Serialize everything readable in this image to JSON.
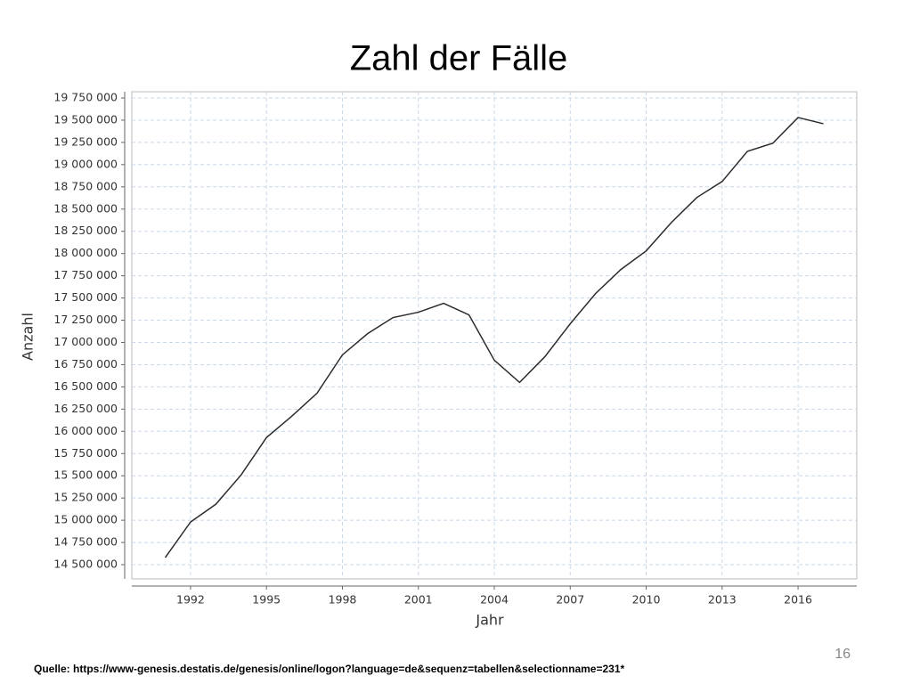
{
  "chart_data": {
    "type": "line",
    "title": "Zahl der Fälle",
    "xlabel": "Jahr",
    "ylabel": "Anzahl",
    "x": [
      1991,
      1992,
      1993,
      1994,
      1995,
      1996,
      1997,
      1998,
      1999,
      2000,
      2001,
      2002,
      2003,
      2004,
      2005,
      2006,
      2007,
      2008,
      2009,
      2010,
      2011,
      2012,
      2013,
      2014,
      2015,
      2016,
      2017
    ],
    "series": [
      {
        "name": "Anzahl",
        "color": "#2b2b2b",
        "values": [
          14580000,
          14980000,
          15180000,
          15510000,
          15930000,
          16170000,
          16430000,
          16860000,
          17100000,
          17280000,
          17340000,
          17440000,
          17310000,
          16800000,
          16550000,
          16840000,
          17210000,
          17550000,
          17820000,
          18030000,
          18350000,
          18630000,
          18810000,
          19150000,
          19240000,
          19530000,
          19460000
        ]
      }
    ],
    "xlim": [
      1989.68,
      2018.32
    ],
    "ylim": [
      14340000,
      19820000
    ],
    "xticks": [
      1992,
      1995,
      1998,
      2001,
      2004,
      2007,
      2010,
      2013,
      2016
    ],
    "yticks": [
      {
        "value": 14500000,
        "label": "14 500 000"
      },
      {
        "value": 14750000,
        "label": "14 750 000"
      },
      {
        "value": 15000000,
        "label": "15 000 000"
      },
      {
        "value": 15250000,
        "label": "15 250 000"
      },
      {
        "value": 15500000,
        "label": "15 500 000"
      },
      {
        "value": 15750000,
        "label": "15 750 000"
      },
      {
        "value": 16000000,
        "label": "16 000 000"
      },
      {
        "value": 16250000,
        "label": "16 250 000"
      },
      {
        "value": 16500000,
        "label": "16 500 000"
      },
      {
        "value": 16750000,
        "label": "16 750 000"
      },
      {
        "value": 17000000,
        "label": "17 000 000"
      },
      {
        "value": 17250000,
        "label": "17 250 000"
      },
      {
        "value": 17500000,
        "label": "17 500 000"
      },
      {
        "value": 17750000,
        "label": "17 750 000"
      },
      {
        "value": 18000000,
        "label": "18 000 000"
      },
      {
        "value": 18250000,
        "label": "18 250 000"
      },
      {
        "value": 18500000,
        "label": "18 500 000"
      },
      {
        "value": 18750000,
        "label": "18 750 000"
      },
      {
        "value": 19000000,
        "label": "19 000 000"
      },
      {
        "value": 19250000,
        "label": "19 250 000"
      },
      {
        "value": 19500000,
        "label": "19 500 000"
      },
      {
        "value": 19750000,
        "label": "19 750 000"
      }
    ],
    "grid": true,
    "grid_color": "#c8d8ea",
    "source": "Quelle: https://www-genesis.destatis.de/genesis/online/logon?language=de&sequenz=tabellen&selectionname=231*",
    "page_number": "16"
  }
}
